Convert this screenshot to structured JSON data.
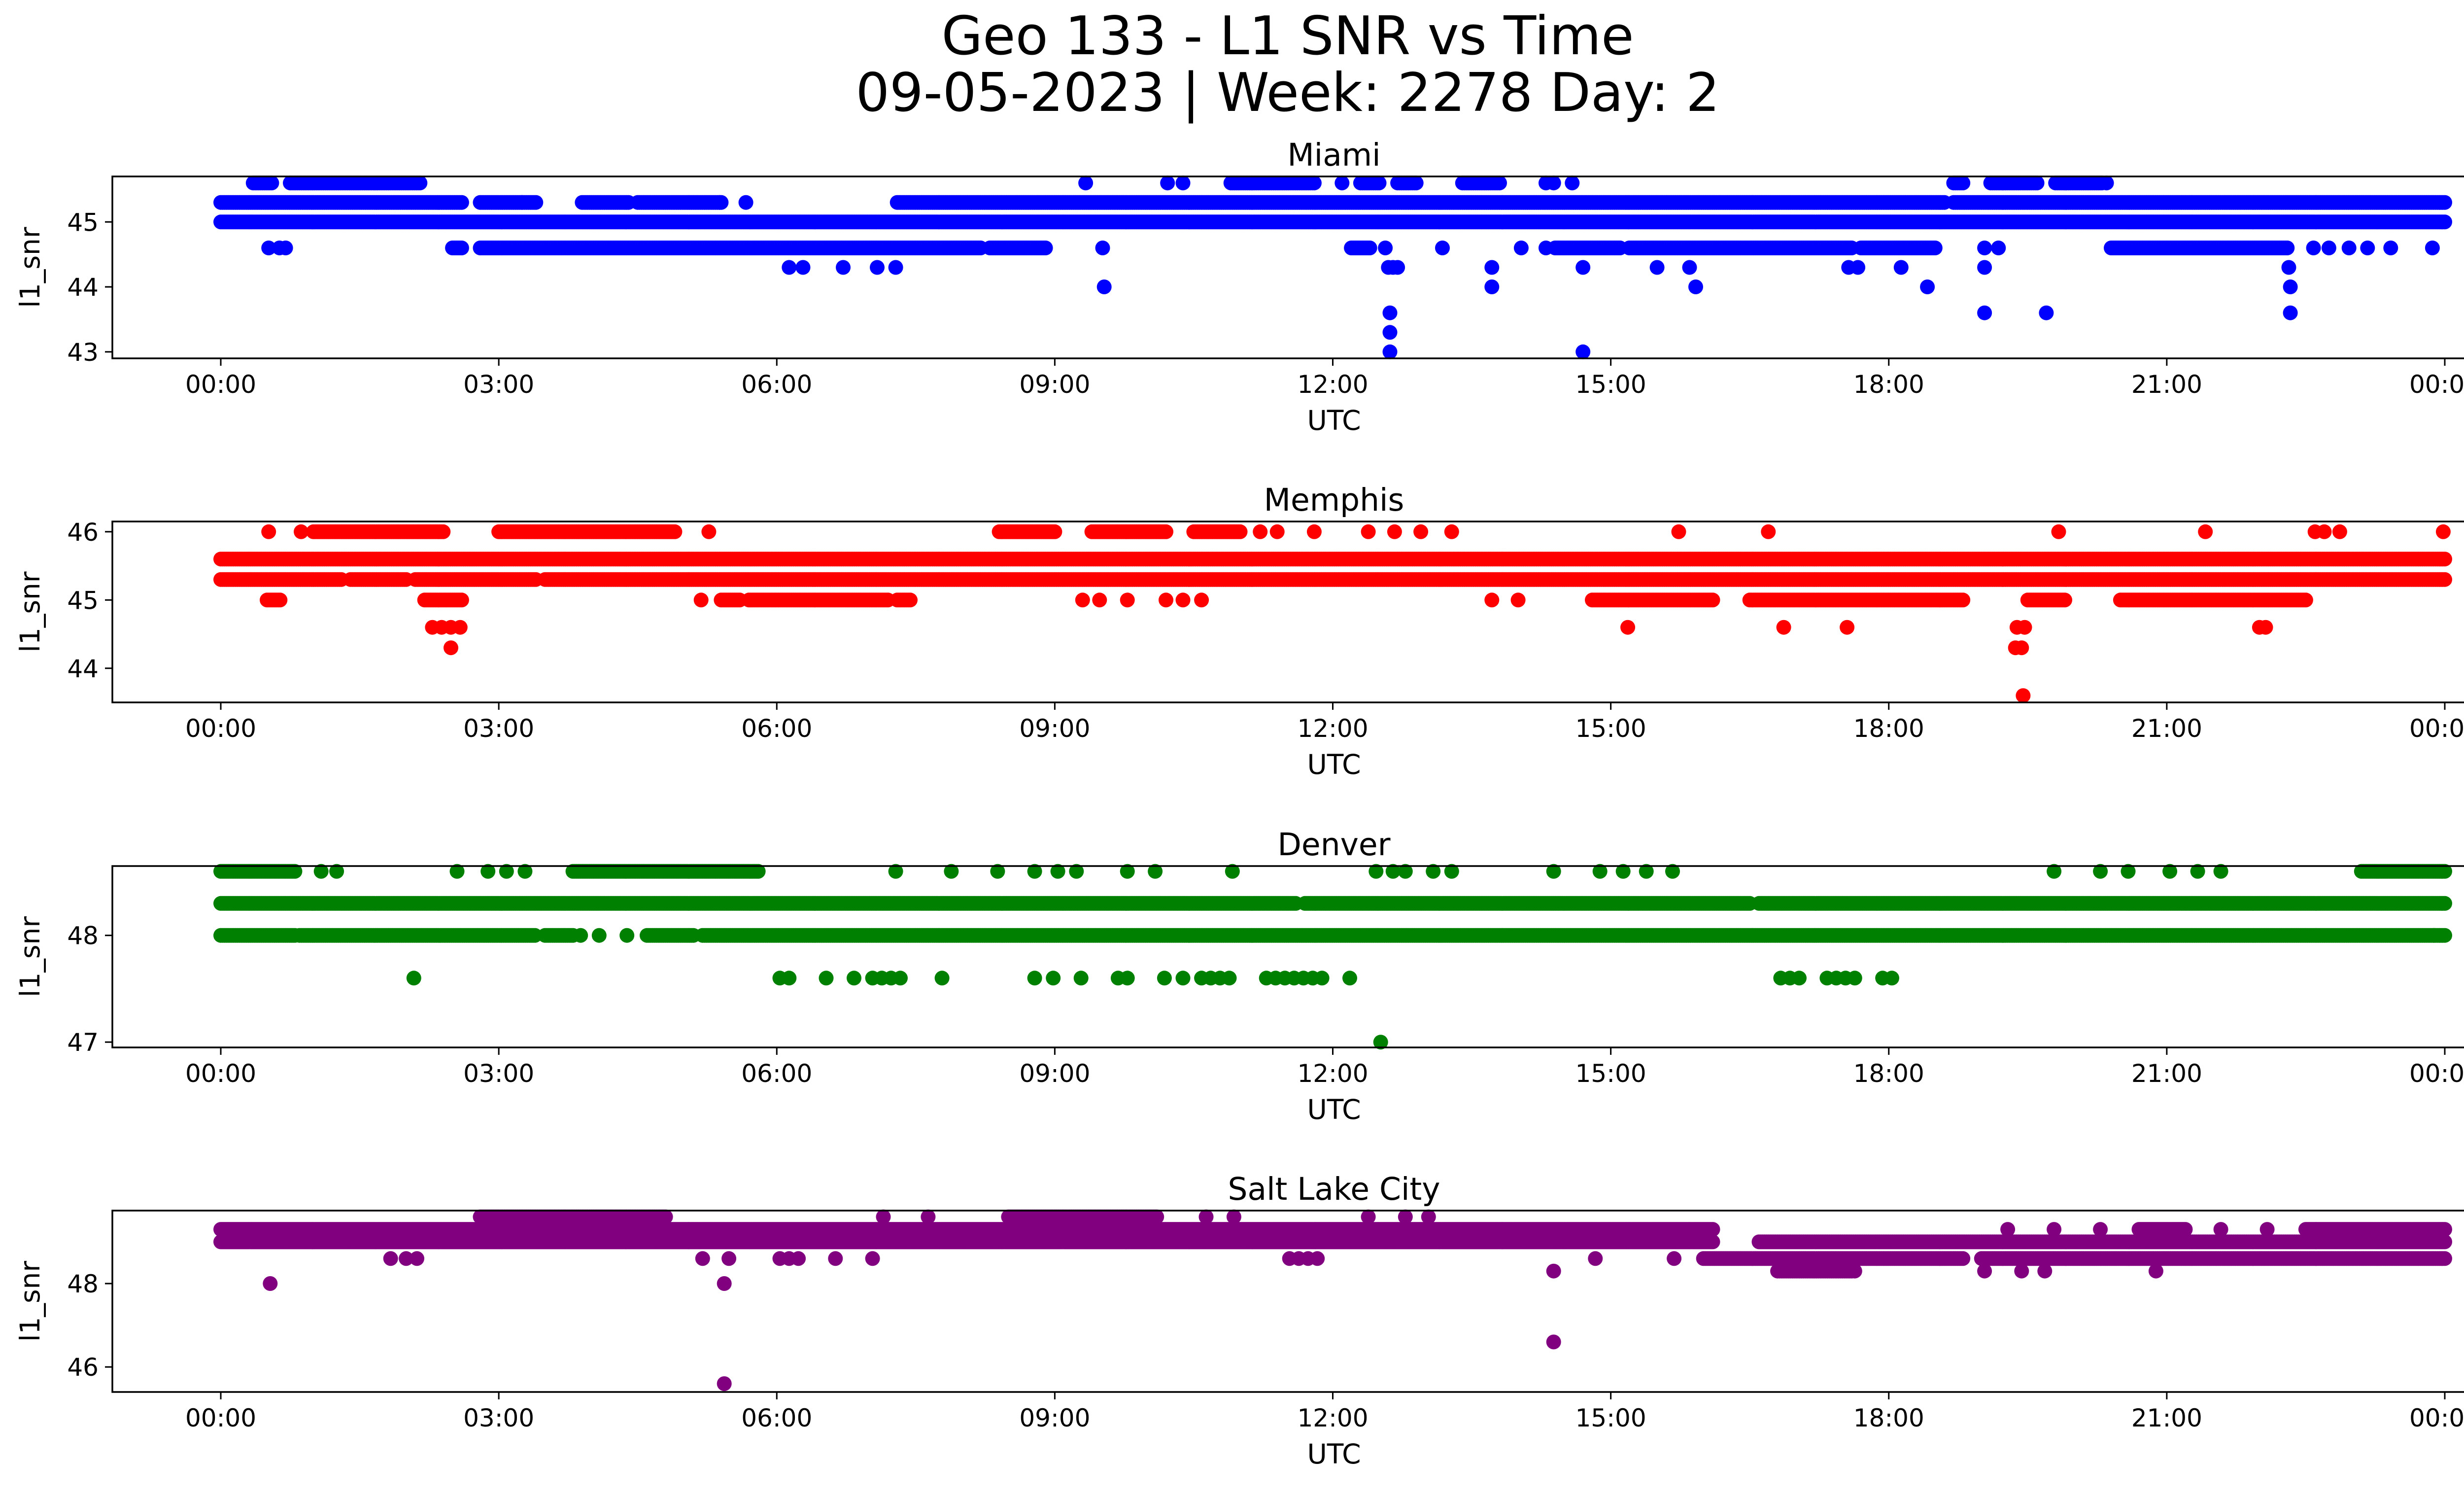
{
  "figure": {
    "title_line1": "Geo 133 - L1 SNR vs Time",
    "title_line2": "09-05-2023 | Week: 2278 Day: 2"
  },
  "chart_data": [
    {
      "type": "scatter",
      "title": "Miami",
      "xlabel": "UTC",
      "ylabel": "l1_snr",
      "color": "#0000ff",
      "xlim": [
        "00:00",
        "24:00"
      ],
      "ylim": [
        42.9,
        45.7
      ],
      "yticks": [
        43,
        44,
        45
      ],
      "xtick_labels": [
        "00:00",
        "03:00",
        "06:00",
        "09:00",
        "12:00",
        "15:00",
        "18:00",
        "21:00",
        "00:00"
      ],
      "bands": [
        {
          "y": 45.0,
          "ranges": [
            [
              0.0,
              24.0
            ]
          ]
        },
        {
          "y": 45.3,
          "ranges": [
            [
              0.0,
              2.6
            ],
            [
              2.8,
              3.4
            ],
            [
              3.9,
              4.4
            ],
            [
              4.5,
              5.4
            ],
            [
              7.3,
              18.6
            ],
            [
              18.7,
              24.0
            ]
          ]
        },
        {
          "y": 44.6,
          "ranges": [
            [
              2.5,
              2.6
            ],
            [
              2.8,
              8.2
            ],
            [
              8.3,
              8.9
            ],
            [
              12.2,
              12.4
            ],
            [
              14.4,
              15.1
            ],
            [
              15.2,
              17.6
            ],
            [
              17.7,
              18.5
            ],
            [
              20.4,
              22.3
            ]
          ]
        },
        {
          "y": 45.6,
          "ranges": [
            [
              0.35,
              0.55
            ],
            [
              0.75,
              2.15
            ],
            [
              10.9,
              11.8
            ],
            [
              12.3,
              12.5
            ],
            [
              12.7,
              12.9
            ],
            [
              13.4,
              13.8
            ],
            [
              18.7,
              18.8
            ],
            [
              19.1,
              19.6
            ],
            [
              19.8,
              20.3
            ]
          ]
        }
      ],
      "points": [
        [
          "00:31",
          44.6
        ],
        [
          "00:38",
          44.6
        ],
        [
          "00:42",
          44.6
        ],
        [
          "03:15",
          45.3
        ],
        [
          "05:23",
          45.3
        ],
        [
          "05:40",
          45.3
        ],
        [
          "06:08",
          44.3
        ],
        [
          "06:17",
          44.3
        ],
        [
          "06:43",
          44.3
        ],
        [
          "07:05",
          44.3
        ],
        [
          "07:17",
          44.3
        ],
        [
          "09:20",
          45.6
        ],
        [
          "09:31",
          44.6
        ],
        [
          "09:32",
          44.0
        ],
        [
          "10:13",
          45.6
        ],
        [
          "10:23",
          45.6
        ],
        [
          "12:06",
          45.6
        ],
        [
          "12:34",
          44.6
        ],
        [
          "12:36",
          44.3
        ],
        [
          "12:39",
          44.3
        ],
        [
          "12:42",
          44.3
        ],
        [
          "12:37",
          43.6
        ],
        [
          "12:37",
          43.3
        ],
        [
          "12:37",
          43.0
        ],
        [
          "13:11",
          44.6
        ],
        [
          "13:43",
          44.3
        ],
        [
          "13:43",
          44.0
        ],
        [
          "14:02",
          44.6
        ],
        [
          "14:18",
          45.6
        ],
        [
          "14:23",
          45.6
        ],
        [
          "14:35",
          45.6
        ],
        [
          "14:18",
          44.6
        ],
        [
          "14:42",
          44.3
        ],
        [
          "14:42",
          43.0
        ],
        [
          "15:51",
          44.3
        ],
        [
          "15:30",
          44.3
        ],
        [
          "15:55",
          44.0
        ],
        [
          "17:34",
          44.3
        ],
        [
          "17:40",
          44.3
        ],
        [
          "18:08",
          44.3
        ],
        [
          "18:25",
          44.0
        ],
        [
          "19:02",
          44.6
        ],
        [
          "19:02",
          44.3
        ],
        [
          "19:02",
          43.6
        ],
        [
          "19:11",
          44.6
        ],
        [
          "19:42",
          43.6
        ],
        [
          "20:21",
          45.6
        ],
        [
          "22:19",
          44.3
        ],
        [
          "22:20",
          44.0
        ],
        [
          "22:20",
          43.6
        ],
        [
          "22:35",
          44.6
        ],
        [
          "22:45",
          44.6
        ],
        [
          "22:58",
          44.6
        ],
        [
          "23:10",
          44.6
        ],
        [
          "23:25",
          44.6
        ],
        [
          "23:52",
          44.6
        ]
      ]
    },
    {
      "type": "scatter",
      "title": "Memphis",
      "xlabel": "UTC",
      "ylabel": "l1_snr",
      "color": "#ff0000",
      "xlim": [
        "00:00",
        "24:00"
      ],
      "ylim": [
        43.5,
        46.15
      ],
      "yticks": [
        44,
        45,
        46
      ],
      "xtick_labels": [
        "00:00",
        "03:00",
        "06:00",
        "09:00",
        "12:00",
        "15:00",
        "18:00",
        "21:00",
        "00:00"
      ],
      "bands": [
        {
          "y": 45.6,
          "ranges": [
            [
              0.0,
              24.0
            ]
          ]
        },
        {
          "y": 45.3,
          "ranges": [
            [
              0.0,
              1.3
            ],
            [
              1.4,
              2.0
            ],
            [
              2.1,
              3.4
            ],
            [
              3.5,
              24.0
            ]
          ]
        },
        {
          "y": 46.0,
          "ranges": [
            [
              1.0,
              2.4
            ],
            [
              3.0,
              4.9
            ],
            [
              8.4,
              9.0
            ],
            [
              9.4,
              10.2
            ],
            [
              10.5,
              11.0
            ]
          ]
        },
        {
          "y": 45.0,
          "ranges": [
            [
              0.5,
              0.65
            ],
            [
              2.2,
              2.6
            ],
            [
              5.4,
              5.6
            ],
            [
              5.7,
              7.2
            ],
            [
              7.3,
              7.45
            ],
            [
              14.8,
              16.1
            ],
            [
              16.5,
              18.8
            ],
            [
              19.5,
              19.9
            ],
            [
              20.5,
              22.5
            ]
          ]
        }
      ],
      "points": [
        [
          "00:31",
          46.0
        ],
        [
          "00:52",
          46.0
        ],
        [
          "05:16",
          46.0
        ],
        [
          "02:17",
          44.6
        ],
        [
          "02:23",
          44.6
        ],
        [
          "02:29",
          44.6
        ],
        [
          "02:35",
          44.6
        ],
        [
          "02:29",
          44.3
        ],
        [
          "05:11",
          45.0
        ],
        [
          "09:18",
          45.0
        ],
        [
          "09:29",
          45.0
        ],
        [
          "09:47",
          45.0
        ],
        [
          "10:12",
          45.0
        ],
        [
          "10:23",
          45.0
        ],
        [
          "10:35",
          45.0
        ],
        [
          "11:13",
          46.0
        ],
        [
          "11:24",
          46.0
        ],
        [
          "11:48",
          46.0
        ],
        [
          "12:23",
          46.0
        ],
        [
          "12:40",
          46.0
        ],
        [
          "12:57",
          46.0
        ],
        [
          "13:17",
          46.0
        ],
        [
          "13:43",
          45.0
        ],
        [
          "14:00",
          45.0
        ],
        [
          "15:11",
          44.6
        ],
        [
          "15:44",
          46.0
        ],
        [
          "16:42",
          46.0
        ],
        [
          "16:52",
          44.6
        ],
        [
          "17:33",
          44.6
        ],
        [
          "19:23",
          44.6
        ],
        [
          "19:28",
          44.6
        ],
        [
          "19:26",
          44.3
        ],
        [
          "19:22",
          44.3
        ],
        [
          "19:27",
          43.6
        ],
        [
          "19:50",
          46.0
        ],
        [
          "21:25",
          46.0
        ],
        [
          "22:00",
          44.6
        ],
        [
          "22:04",
          44.6
        ],
        [
          "22:36",
          46.0
        ],
        [
          "22:42",
          46.0
        ],
        [
          "22:52",
          46.0
        ],
        [
          "23:59",
          46.0
        ]
      ]
    },
    {
      "type": "scatter",
      "title": "Denver",
      "xlabel": "UTC",
      "ylabel": "l1_snr",
      "color": "#008000",
      "xlim": [
        "00:00",
        "24:00"
      ],
      "ylim": [
        46.95,
        48.65
      ],
      "yticks": [
        47,
        48
      ],
      "xtick_labels": [
        "00:00",
        "03:00",
        "06:00",
        "09:00",
        "12:00",
        "15:00",
        "18:00",
        "21:00",
        "00:00"
      ],
      "bands": [
        {
          "y": 48.3,
          "ranges": [
            [
              0.0,
              11.6
            ],
            [
              11.7,
              16.5
            ],
            [
              16.6,
              24.0
            ]
          ]
        },
        {
          "y": 48.0,
          "ranges": [
            [
              0.0,
              0.8
            ],
            [
              0.85,
              3.4
            ],
            [
              3.5,
              3.8
            ],
            [
              4.6,
              5.1
            ],
            [
              5.2,
              24.0
            ]
          ]
        },
        {
          "y": 48.6,
          "ranges": [
            [
              0.0,
              0.8
            ],
            [
              3.8,
              5.8
            ],
            [
              23.1,
              24.0
            ]
          ]
        }
      ],
      "points": [
        [
          "01:05",
          48.6
        ],
        [
          "01:15",
          48.6
        ],
        [
          "02:33",
          48.6
        ],
        [
          "02:53",
          48.6
        ],
        [
          "03:05",
          48.6
        ],
        [
          "03:17",
          48.6
        ],
        [
          "07:17",
          48.6
        ],
        [
          "07:53",
          48.6
        ],
        [
          "08:23",
          48.6
        ],
        [
          "08:47",
          48.6
        ],
        [
          "09:02",
          48.6
        ],
        [
          "09:14",
          48.6
        ],
        [
          "09:47",
          48.6
        ],
        [
          "10:05",
          48.6
        ],
        [
          "10:55",
          48.6
        ],
        [
          "12:28",
          48.6
        ],
        [
          "12:39",
          48.6
        ],
        [
          "12:47",
          48.6
        ],
        [
          "13:05",
          48.6
        ],
        [
          "13:17",
          48.6
        ],
        [
          "14:23",
          48.6
        ],
        [
          "14:53",
          48.6
        ],
        [
          "15:08",
          48.6
        ],
        [
          "15:23",
          48.6
        ],
        [
          "15:40",
          48.6
        ],
        [
          "19:47",
          48.6
        ],
        [
          "20:17",
          48.6
        ],
        [
          "20:35",
          48.6
        ],
        [
          "21:02",
          48.6
        ],
        [
          "21:20",
          48.6
        ],
        [
          "21:35",
          48.6
        ],
        [
          "03:53",
          48.0
        ],
        [
          "04:05",
          48.0
        ],
        [
          "04:23",
          48.0
        ],
        [
          "23:53",
          48.0
        ],
        [
          "02:05",
          47.6
        ],
        [
          "06:02",
          47.6
        ],
        [
          "06:08",
          47.6
        ],
        [
          "06:32",
          47.6
        ],
        [
          "06:50",
          47.6
        ],
        [
          "07:02",
          47.6
        ],
        [
          "07:08",
          47.6
        ],
        [
          "07:14",
          47.6
        ],
        [
          "07:20",
          47.6
        ],
        [
          "07:47",
          47.6
        ],
        [
          "08:47",
          47.6
        ],
        [
          "08:59",
          47.6
        ],
        [
          "09:17",
          47.6
        ],
        [
          "09:41",
          47.6
        ],
        [
          "09:47",
          47.6
        ],
        [
          "10:11",
          47.6
        ],
        [
          "10:23",
          47.6
        ],
        [
          "10:35",
          47.6
        ],
        [
          "10:41",
          47.6
        ],
        [
          "10:47",
          47.6
        ],
        [
          "10:53",
          47.6
        ],
        [
          "11:17",
          47.6
        ],
        [
          "11:23",
          47.6
        ],
        [
          "11:29",
          47.6
        ],
        [
          "11:35",
          47.6
        ],
        [
          "11:41",
          47.6
        ],
        [
          "11:47",
          47.6
        ],
        [
          "11:53",
          47.6
        ],
        [
          "12:11",
          47.6
        ],
        [
          "16:50",
          47.6
        ],
        [
          "16:56",
          47.6
        ],
        [
          "17:02",
          47.6
        ],
        [
          "17:20",
          47.6
        ],
        [
          "17:26",
          47.6
        ],
        [
          "17:32",
          47.6
        ],
        [
          "17:38",
          47.6
        ],
        [
          "17:56",
          47.6
        ],
        [
          "18:02",
          47.6
        ],
        [
          "12:31",
          47.0
        ]
      ]
    },
    {
      "type": "scatter",
      "title": "Salt Lake City",
      "xlabel": "UTC",
      "ylabel": "l1_snr",
      "color": "#800080",
      "xlim": [
        "00:00",
        "24:00"
      ],
      "ylim": [
        45.4,
        49.75
      ],
      "yticks": [
        46,
        48
      ],
      "xtick_labels": [
        "00:00",
        "03:00",
        "06:00",
        "09:00",
        "12:00",
        "15:00",
        "18:00",
        "21:00",
        "00:00"
      ],
      "bands": [
        {
          "y": 49.3,
          "ranges": [
            [
              0.0,
              16.1
            ],
            [
              20.7,
              21.2
            ],
            [
              22.5,
              24.0
            ]
          ]
        },
        {
          "y": 49.0,
          "ranges": [
            [
              0.0,
              16.1
            ],
            [
              16.6,
              24.0
            ]
          ]
        },
        {
          "y": 49.6,
          "ranges": [
            [
              2.8,
              4.8
            ],
            [
              8.5,
              10.1
            ]
          ]
        },
        {
          "y": 48.6,
          "ranges": [
            [
              16.0,
              18.8
            ],
            [
              19.0,
              24.0
            ]
          ]
        },
        {
          "y": 48.3,
          "ranges": [
            [
              16.8,
              17.6
            ]
          ]
        }
      ],
      "points": [
        [
          "00:32",
          48.0
        ],
        [
          "01:50",
          48.6
        ],
        [
          "02:00",
          48.6
        ],
        [
          "02:07",
          48.6
        ],
        [
          "05:12",
          48.6
        ],
        [
          "05:29",
          48.6
        ],
        [
          "05:26",
          48.0
        ],
        [
          "05:26",
          45.6
        ],
        [
          "06:02",
          48.6
        ],
        [
          "06:08",
          48.6
        ],
        [
          "06:14",
          48.6
        ],
        [
          "06:38",
          48.6
        ],
        [
          "07:02",
          48.6
        ],
        [
          "11:32",
          48.6
        ],
        [
          "11:38",
          48.6
        ],
        [
          "11:44",
          48.6
        ],
        [
          "11:50",
          48.6
        ],
        [
          "14:23",
          48.3
        ],
        [
          "14:23",
          46.6
        ],
        [
          "14:50",
          48.6
        ],
        [
          "15:41",
          48.6
        ],
        [
          "17:38",
          48.3
        ],
        [
          "19:02",
          48.3
        ],
        [
          "19:26",
          48.3
        ],
        [
          "19:41",
          48.3
        ],
        [
          "20:53",
          48.3
        ],
        [
          "19:17",
          49.3
        ],
        [
          "19:47",
          49.3
        ],
        [
          "20:17",
          49.3
        ],
        [
          "21:35",
          49.3
        ],
        [
          "22:05",
          49.3
        ],
        [
          "07:09",
          49.6
        ],
        [
          "07:38",
          49.6
        ],
        [
          "10:38",
          49.6
        ],
        [
          "10:56",
          49.6
        ],
        [
          "12:23",
          49.6
        ],
        [
          "12:47",
          49.6
        ],
        [
          "13:02",
          49.6
        ]
      ]
    }
  ]
}
